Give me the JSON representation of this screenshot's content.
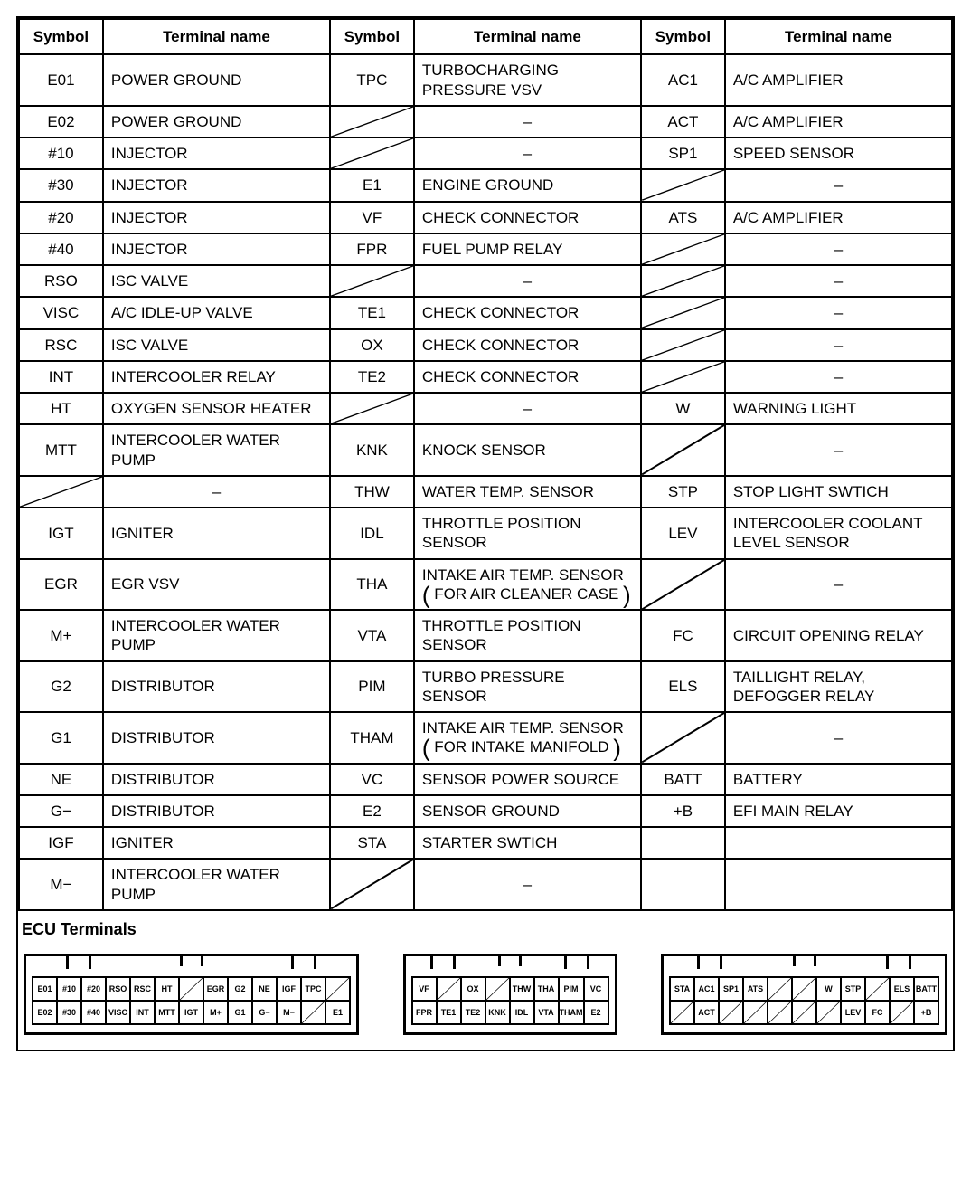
{
  "headers": {
    "symbol": "Symbol",
    "terminal": "Terminal name"
  },
  "caption": "ECU Terminals",
  "colors": {
    "border": "#000000",
    "background": "#ffffff",
    "text": "#000000"
  },
  "rows": [
    {
      "c1": {
        "s": "E01",
        "n": "POWER GROUND"
      },
      "c2": {
        "s": "TPC",
        "n": "TURBOCHARGING PRESSURE VSV"
      },
      "c3": {
        "s": "AC1",
        "n": "A/C AMPLIFIER"
      }
    },
    {
      "c1": {
        "s": "E02",
        "n": "POWER GROUND"
      },
      "c2": {
        "slash": true,
        "dash": true
      },
      "c3": {
        "s": "ACT",
        "n": "A/C AMPLIFIER"
      }
    },
    {
      "c1": {
        "s": "#10",
        "n": "INJECTOR"
      },
      "c2": {
        "slash": true,
        "dash": true
      },
      "c3": {
        "s": "SP1",
        "n": "SPEED SENSOR"
      }
    },
    {
      "c1": {
        "s": "#30",
        "n": "INJECTOR"
      },
      "c2": {
        "s": "E1",
        "n": "ENGINE GROUND"
      },
      "c3": {
        "slash": true,
        "dash": true
      }
    },
    {
      "c1": {
        "s": "#20",
        "n": "INJECTOR"
      },
      "c2": {
        "s": "VF",
        "n": "CHECK CONNECTOR"
      },
      "c3": {
        "s": "ATS",
        "n": "A/C AMPLIFIER"
      }
    },
    {
      "c1": {
        "s": "#40",
        "n": "INJECTOR"
      },
      "c2": {
        "s": "FPR",
        "n": "FUEL PUMP RELAY"
      },
      "c3": {
        "slash": true,
        "dash": true
      }
    },
    {
      "c1": {
        "s": "RSO",
        "n": "ISC VALVE"
      },
      "c2": {
        "slash": true,
        "dash": true
      },
      "c3": {
        "slash": true,
        "dash": true
      }
    },
    {
      "c1": {
        "s": "VISC",
        "n": "A/C IDLE-UP VALVE"
      },
      "c2": {
        "s": "TE1",
        "n": "CHECK CONNECTOR"
      },
      "c3": {
        "slash": true,
        "dash": true
      }
    },
    {
      "c1": {
        "s": "RSC",
        "n": "ISC VALVE"
      },
      "c2": {
        "s": "OX",
        "n": "CHECK CONNECTOR"
      },
      "c3": {
        "slash": true,
        "dash": true
      }
    },
    {
      "c1": {
        "s": "INT",
        "n": "INTERCOOLER RELAY"
      },
      "c2": {
        "s": "TE2",
        "n": "CHECK CONNECTOR"
      },
      "c3": {
        "slash": true,
        "dash": true
      }
    },
    {
      "c1": {
        "s": "HT",
        "n": "OXYGEN SENSOR HEATER"
      },
      "c2": {
        "slash": true,
        "dash": true
      },
      "c3": {
        "s": "W",
        "n": "WARNING LIGHT"
      }
    },
    {
      "c1": {
        "s": "MTT",
        "n": "INTERCOOLER WATER PUMP"
      },
      "c2": {
        "s": "KNK",
        "n": "KNOCK SENSOR"
      },
      "c3": {
        "slash": true,
        "dash": true
      }
    },
    {
      "c1": {
        "slash": true,
        "dash": true
      },
      "c2": {
        "s": "THW",
        "n": "WATER TEMP. SENSOR"
      },
      "c3": {
        "s": "STP",
        "n": "STOP LIGHT SWTICH"
      }
    },
    {
      "c1": {
        "s": "IGT",
        "n": "IGNITER"
      },
      "c2": {
        "s": "IDL",
        "n": "THROTTLE POSITION SENSOR"
      },
      "c3": {
        "s": "LEV",
        "n": "INTERCOOLER COOLANT LEVEL SENSOR"
      }
    },
    {
      "c1": {
        "s": "EGR",
        "n": "EGR VSV"
      },
      "c2": {
        "s": "THA",
        "n": "INTAKE AIR TEMP. SENSOR",
        "paren": "FOR AIR CLEANER CASE"
      },
      "c3": {
        "slash": true,
        "dash": true
      }
    },
    {
      "c1": {
        "s": "M+",
        "n": "INTERCOOLER WATER PUMP"
      },
      "c2": {
        "s": "VTA",
        "n": "THROTTLE POSITION SENSOR"
      },
      "c3": {
        "s": "FC",
        "n": "CIRCUIT OPENING RELAY"
      }
    },
    {
      "c1": {
        "s": "G2",
        "n": "DISTRIBUTOR"
      },
      "c2": {
        "s": "PIM",
        "n": "TURBO PRESSURE SENSOR"
      },
      "c3": {
        "s": "ELS",
        "n": "TAILLIGHT RELAY, DEFOGGER RELAY"
      }
    },
    {
      "c1": {
        "s": "G1",
        "n": "DISTRIBUTOR"
      },
      "c2": {
        "s": "THAM",
        "n": "INTAKE AIR TEMP. SENSOR",
        "paren": "FOR INTAKE MANIFOLD"
      },
      "c3": {
        "slash": true,
        "dash": true
      }
    },
    {
      "c1": {
        "s": "NE",
        "n": "DISTRIBUTOR"
      },
      "c2": {
        "s": "VC",
        "n": "SENSOR POWER SOURCE"
      },
      "c3": {
        "s": "BATT",
        "n": "BATTERY"
      }
    },
    {
      "c1": {
        "s": "G−",
        "n": "DISTRIBUTOR"
      },
      "c2": {
        "s": "E2",
        "n": "SENSOR GROUND"
      },
      "c3": {
        "s": "+B",
        "n": "EFI MAIN RELAY"
      }
    },
    {
      "c1": {
        "s": "IGF",
        "n": "IGNITER"
      },
      "c2": {
        "s": "STA",
        "n": "STARTER SWTICH"
      },
      "c3": {
        "empty": true
      }
    },
    {
      "c1": {
        "s": "M−",
        "n": "INTERCOOLER WATER PUMP"
      },
      "c2": {
        "slash": true,
        "dash": true
      },
      "c3": {
        "empty": true
      }
    }
  ],
  "connectors": [
    {
      "rows": [
        [
          "E01",
          "#10",
          "#20",
          "RSO",
          "RSC",
          "HT",
          "/",
          "EGR",
          "G2",
          "NE",
          "IGF",
          "TPC",
          "/"
        ],
        [
          "E02",
          "#30",
          "#40",
          "VISC",
          "INT",
          "MTT",
          "IGT",
          "M+",
          "G1",
          "G−",
          "M−",
          "/",
          "E1"
        ]
      ]
    },
    {
      "rows": [
        [
          "VF",
          "/",
          "OX",
          "/",
          "THW",
          "THA",
          "PIM",
          "VC"
        ],
        [
          "FPR",
          "TE1",
          "TE2",
          "KNK",
          "IDL",
          "VTA",
          "THAM",
          "E2"
        ]
      ]
    },
    {
      "rows": [
        [
          "STA",
          "AC1",
          "SP1",
          "ATS",
          "/",
          "/",
          "W",
          "STP",
          "/",
          "ELS",
          "BATT"
        ],
        [
          "/",
          "ACT",
          "/",
          "/",
          "/",
          "/",
          "/",
          "LEV",
          "FC",
          "/",
          "+B"
        ]
      ]
    }
  ]
}
